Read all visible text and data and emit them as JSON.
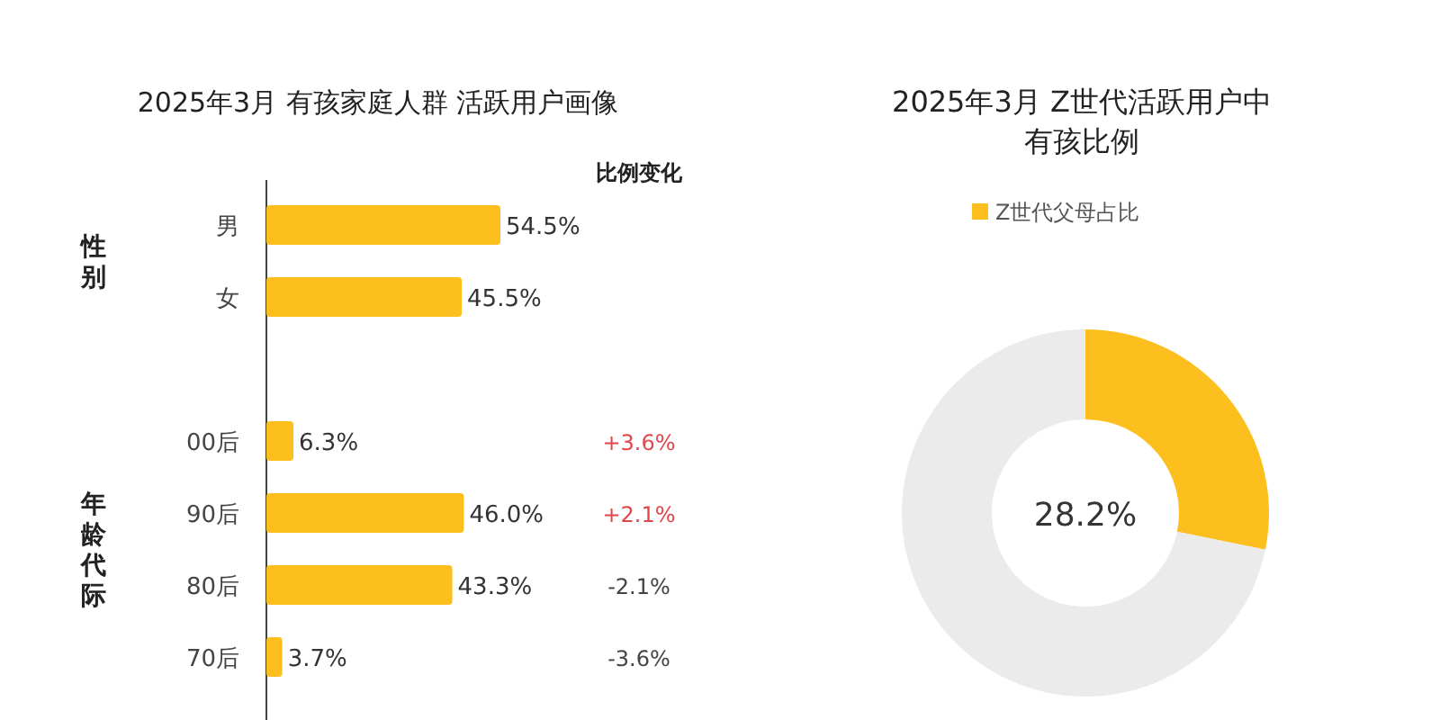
{
  "chart_data": [
    {
      "type": "bar",
      "orientation": "horizontal",
      "tick_labels": "y",
      "title": "2025年3月 有孩家庭人群 活跃用户画像",
      "categories": [
        "男",
        "女",
        null,
        "00后",
        "90后",
        "80后",
        "70后"
      ],
      "values": [
        54.5,
        45.5,
        null,
        6.3,
        46.0,
        43.3,
        3.7
      ],
      "color": "#fcbf1e",
      "value_labels": [
        "54.5%",
        "45.5%",
        null,
        "6.3%",
        "46.0%",
        "43.3%",
        "3.7%"
      ],
      "annotations": [
        "性别",
        "年龄代际",
        "比例变化",
        "+3.6%",
        "+2.1%",
        "-2.1%",
        "-3.6%"
      ]
    },
    {
      "type": "donut",
      "title": "2025年3月 Z世代活跃用户中有孩比例",
      "categories": [
        "Z世代父母占比",
        null
      ],
      "values": [
        28.2,
        71.8
      ],
      "colors": [
        "#fcbf1e",
        "#ebebeb"
      ],
      "legend": "top",
      "annotations": [
        "28.2%"
      ]
    }
  ]
}
